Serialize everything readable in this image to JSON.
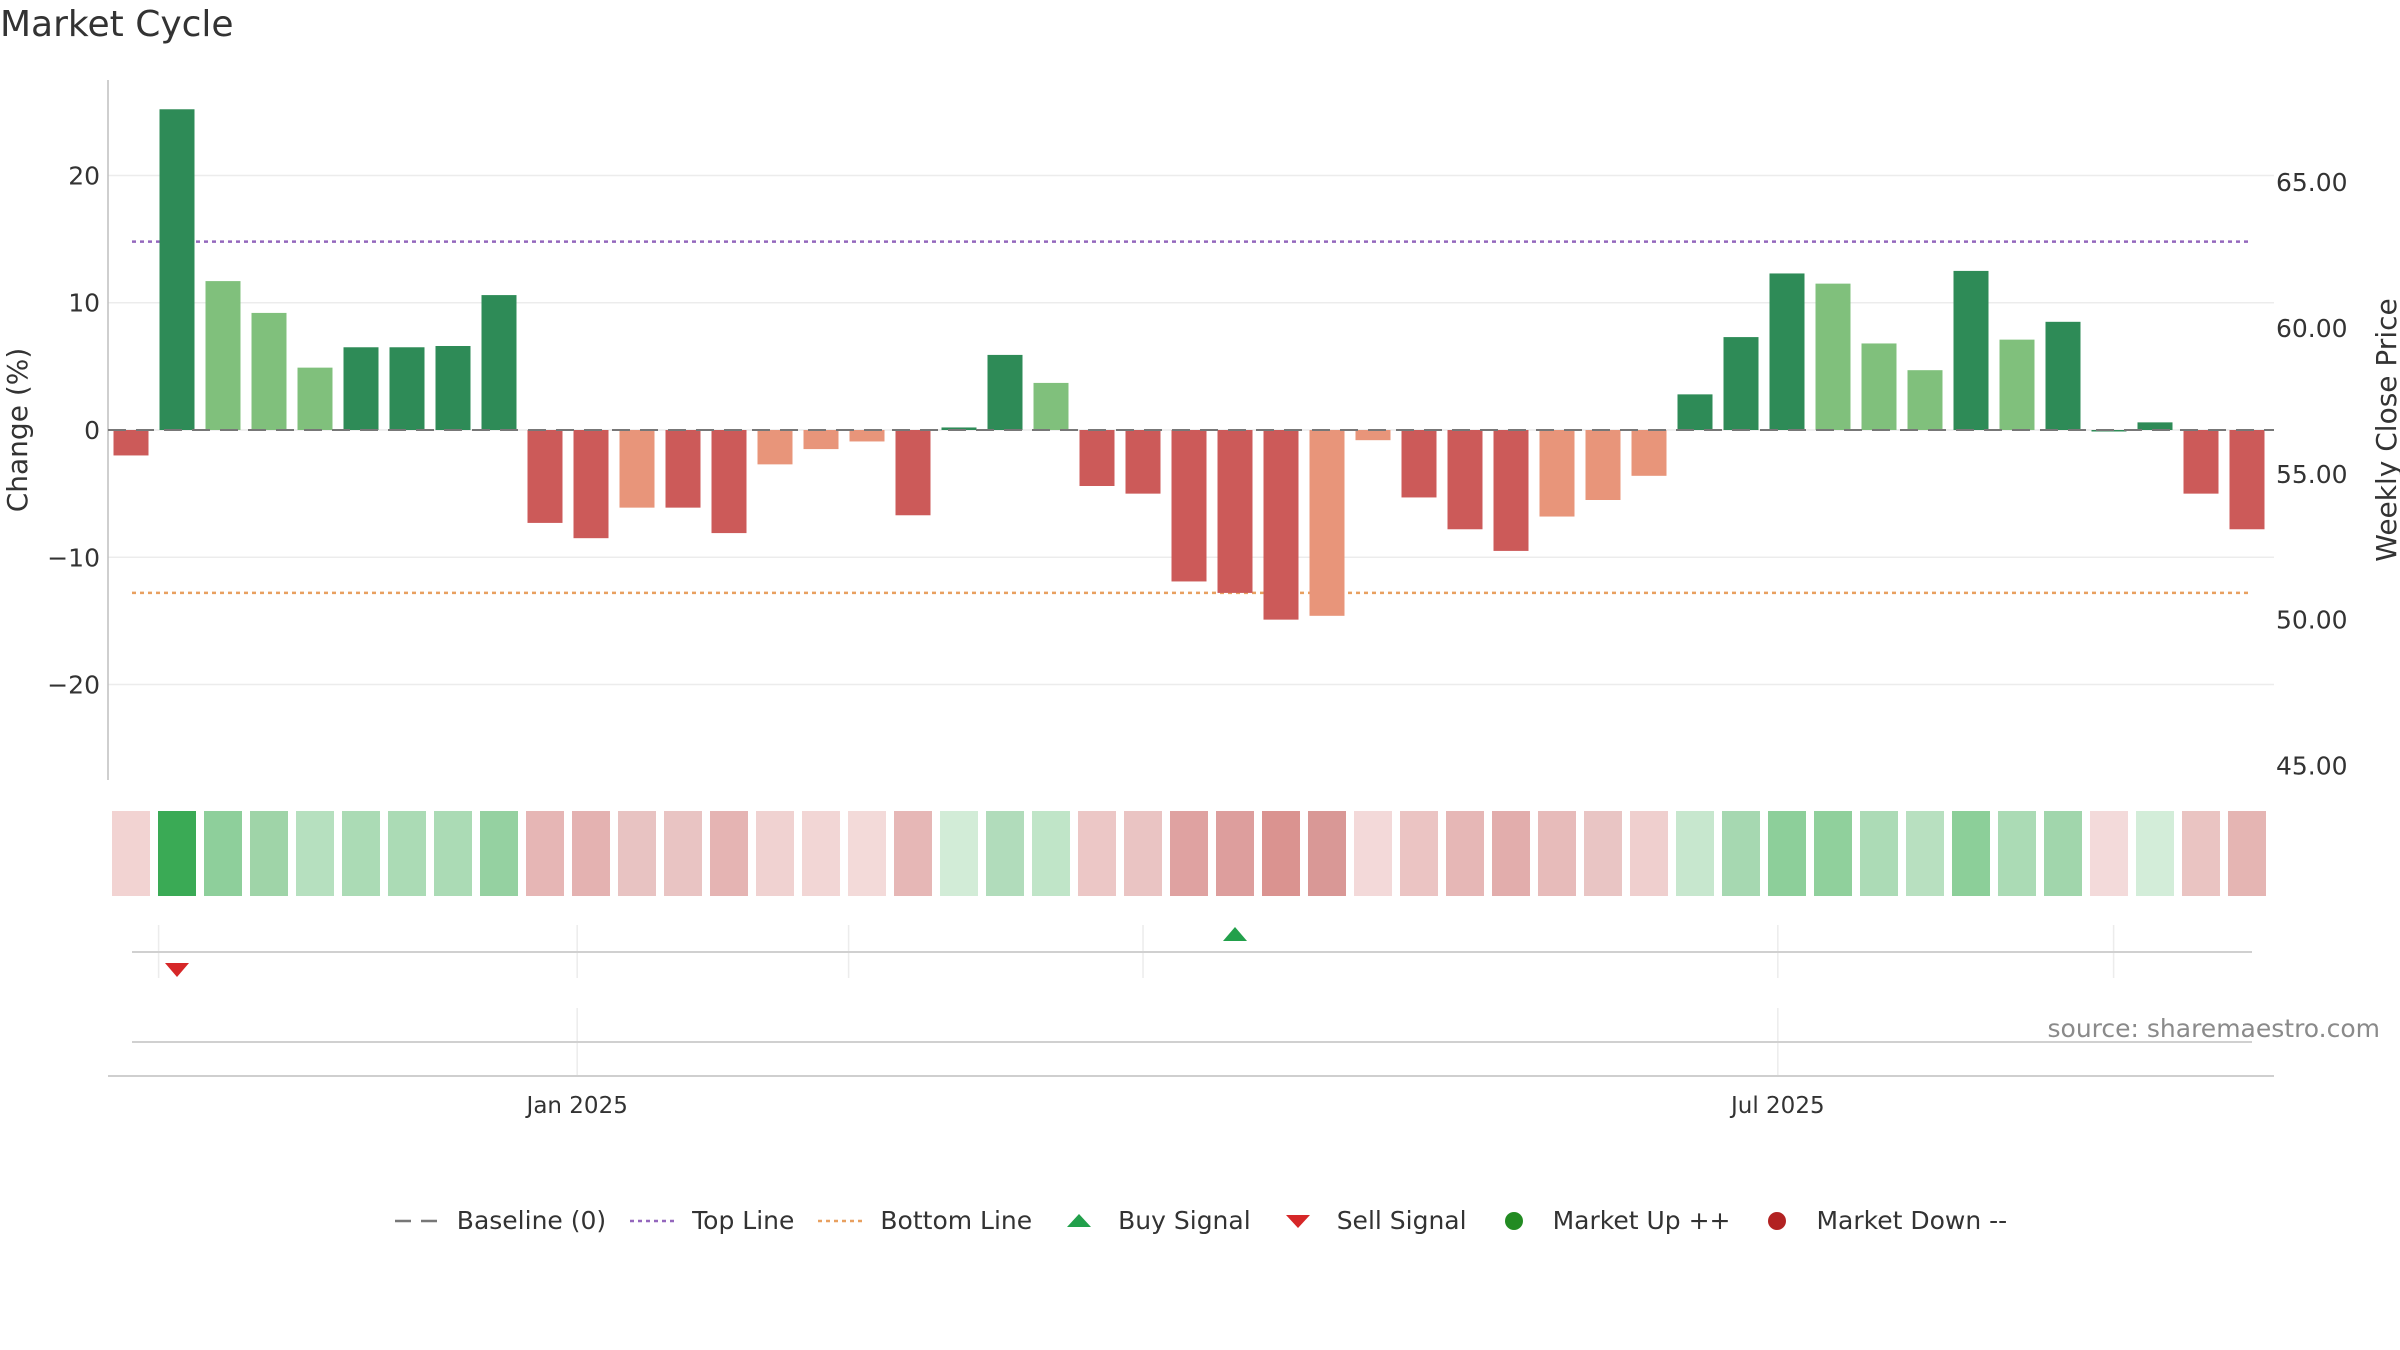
{
  "chart_data": {
    "type": "bar",
    "title": "Market Cycle",
    "ylabel_left": "Change (%)",
    "ylabel_right": "Weekly Close Price",
    "ylim_left": [
      -27.5,
      27.5
    ],
    "ylim_right": [
      44.5,
      68.5
    ],
    "yticks_left": [
      20,
      10,
      0,
      -10,
      -20
    ],
    "ytick_labels_left": [
      "20",
      "10",
      "0",
      "−10",
      "−20"
    ],
    "yticks_right": [
      65,
      60,
      55,
      50,
      45
    ],
    "ytick_labels_right": [
      "65.00",
      "60.00",
      "55.00",
      "50.00",
      "45.00"
    ],
    "top_line": 14.8,
    "bottom_line": -12.8,
    "baseline": 0,
    "x_ticks": [
      {
        "index": 9.7,
        "label": "Jan 2025"
      },
      {
        "index": 35.8,
        "label": "Jul 2025"
      }
    ],
    "values": [
      -2.0,
      25.2,
      11.7,
      9.2,
      4.9,
      6.5,
      6.5,
      6.6,
      10.6,
      -7.3,
      -8.5,
      -6.1,
      -6.1,
      -8.1,
      -2.7,
      -1.5,
      -0.9,
      -6.7,
      0.2,
      5.9,
      3.7,
      -4.4,
      -5.0,
      -11.9,
      -12.8,
      -14.9,
      -14.6,
      -0.8,
      -5.3,
      -7.8,
      -9.5,
      -6.8,
      -5.5,
      -3.6,
      2.8,
      7.3,
      12.3,
      11.5,
      6.8,
      4.7,
      12.5,
      7.1,
      8.5,
      0.0,
      0.6,
      -5.0,
      -7.8
    ],
    "bar_colors": [
      "#cc5a59",
      "#2e8b57",
      "#80c07c",
      "#80c07c",
      "#80c07c",
      "#2e8b57",
      "#2e8b57",
      "#2e8b57",
      "#2e8b57",
      "#cc5a59",
      "#cc5a59",
      "#e8957a",
      "#cc5a59",
      "#cc5a59",
      "#e8957a",
      "#e8957a",
      "#e8957a",
      "#cc5a59",
      "#2e8b57",
      "#2e8b57",
      "#80c07c",
      "#cc5a59",
      "#cc5a59",
      "#cc5a59",
      "#cc5a59",
      "#cc5a59",
      "#e8957a",
      "#e8957a",
      "#cc5a59",
      "#cc5a59",
      "#cc5a59",
      "#e8957a",
      "#e8957a",
      "#e8957a",
      "#2e8b57",
      "#2e8b57",
      "#2e8b57",
      "#80c07c",
      "#80c07c",
      "#80c07c",
      "#2e8b57",
      "#80c07c",
      "#2e8b57",
      "#2e8b57",
      "#2e8b57",
      "#cc5a59",
      "#cc5a59"
    ],
    "heat_colors": [
      "#f2d3d2",
      "#3aaa55",
      "#8ecf9b",
      "#9fd4a8",
      "#b6e0bf",
      "#abdbb5",
      "#abdbb5",
      "#abdbb5",
      "#95d1a1",
      "#e6b6b5",
      "#e4b2b1",
      "#e8c3c2",
      "#e9c4c3",
      "#e5b4b3",
      "#f0d2d1",
      "#f2d6d5",
      "#f3dad9",
      "#e6b7b6",
      "#d2ecd7",
      "#b1dcbb",
      "#c0e5c8",
      "#ecc7c6",
      "#eac4c3",
      "#dfa2a1",
      "#dd9e9d",
      "#da9390",
      "#d99896",
      "#f3d9d9",
      "#ebc4c3",
      "#e6b7b6",
      "#e2adac",
      "#e7bbba",
      "#e9c5c4",
      "#efcfce",
      "#c7e7ce",
      "#a6d8b1",
      "#8dcf9a",
      "#90d09c",
      "#acdbb6",
      "#b8e0c0",
      "#8ccf99",
      "#abdbb5",
      "#a1d6ac",
      "#f3dada",
      "#d3edd9",
      "#eac4c2",
      "#e5b5b3"
    ],
    "signals": [
      {
        "type": "sell",
        "index": 1
      },
      {
        "type": "buy",
        "index": 24
      }
    ],
    "source": "source: sharemaestro.com",
    "legend": [
      {
        "key": "baseline",
        "label": "Baseline (0)",
        "color": "#777777"
      },
      {
        "key": "top",
        "label": "Top Line",
        "color": "#9467bd"
      },
      {
        "key": "bottom",
        "label": "Bottom Line",
        "color": "#e8a060"
      },
      {
        "key": "buy",
        "label": "Buy Signal",
        "color": "#22a04b"
      },
      {
        "key": "sell",
        "label": "Sell Signal",
        "color": "#d62728"
      },
      {
        "key": "up",
        "label": "Market Up ++",
        "color": "#228b22"
      },
      {
        "key": "down",
        "label": "Market Down --",
        "color": "#b22222"
      }
    ]
  }
}
